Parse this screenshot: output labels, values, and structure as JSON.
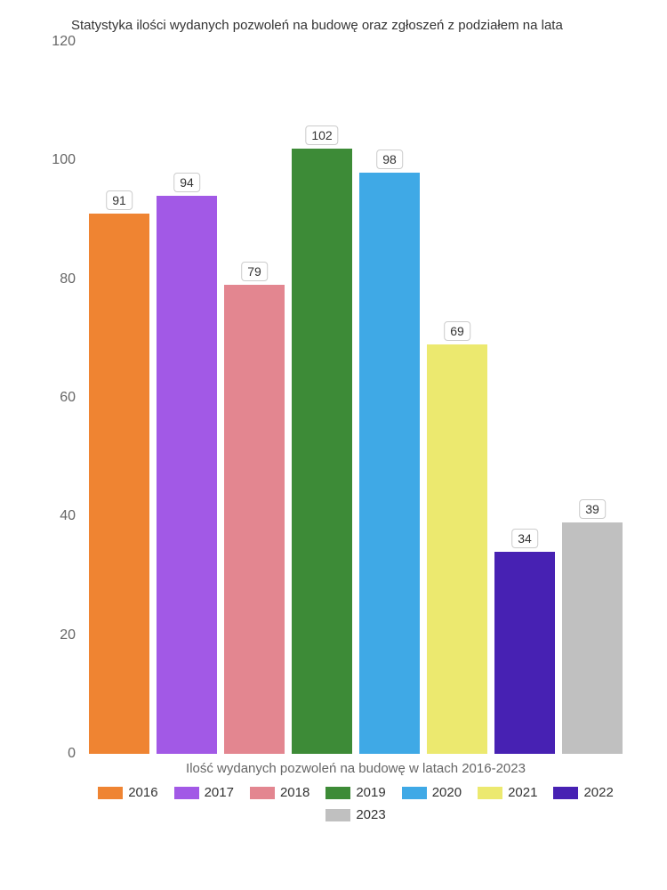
{
  "chart": {
    "type": "bar",
    "title": "Statystyka ilości wydanych pozwoleń na budowę oraz zgłoszeń z podziałem na lata",
    "xlabel": "Ilość wydanych pozwoleń na budowę w latach 2016-2023",
    "ylim_max": 120,
    "ytick_step": 20,
    "yticks": [
      "0",
      "20",
      "40",
      "60",
      "80",
      "100",
      "120"
    ],
    "background_color": "#ffffff",
    "title_fontsize": 15,
    "label_fontsize": 15,
    "tick_fontsize": 16,
    "value_label_fontsize": 14,
    "text_color": "#666666",
    "value_label_bg": "#ffffff",
    "value_label_border": "#cccccc",
    "series": [
      {
        "year": "2016",
        "value": 91,
        "color": "#ef8432"
      },
      {
        "year": "2017",
        "value": 94,
        "color": "#a259e6"
      },
      {
        "year": "2018",
        "value": 79,
        "color": "#e38690"
      },
      {
        "year": "2019",
        "value": 102,
        "color": "#3d8b37"
      },
      {
        "year": "2020",
        "value": 98,
        "color": "#3fa9e6"
      },
      {
        "year": "2021",
        "value": 69,
        "color": "#ece96f"
      },
      {
        "year": "2022",
        "value": 34,
        "color": "#4721b3"
      },
      {
        "year": "2023",
        "value": 39,
        "color": "#c0c0c0"
      }
    ]
  }
}
